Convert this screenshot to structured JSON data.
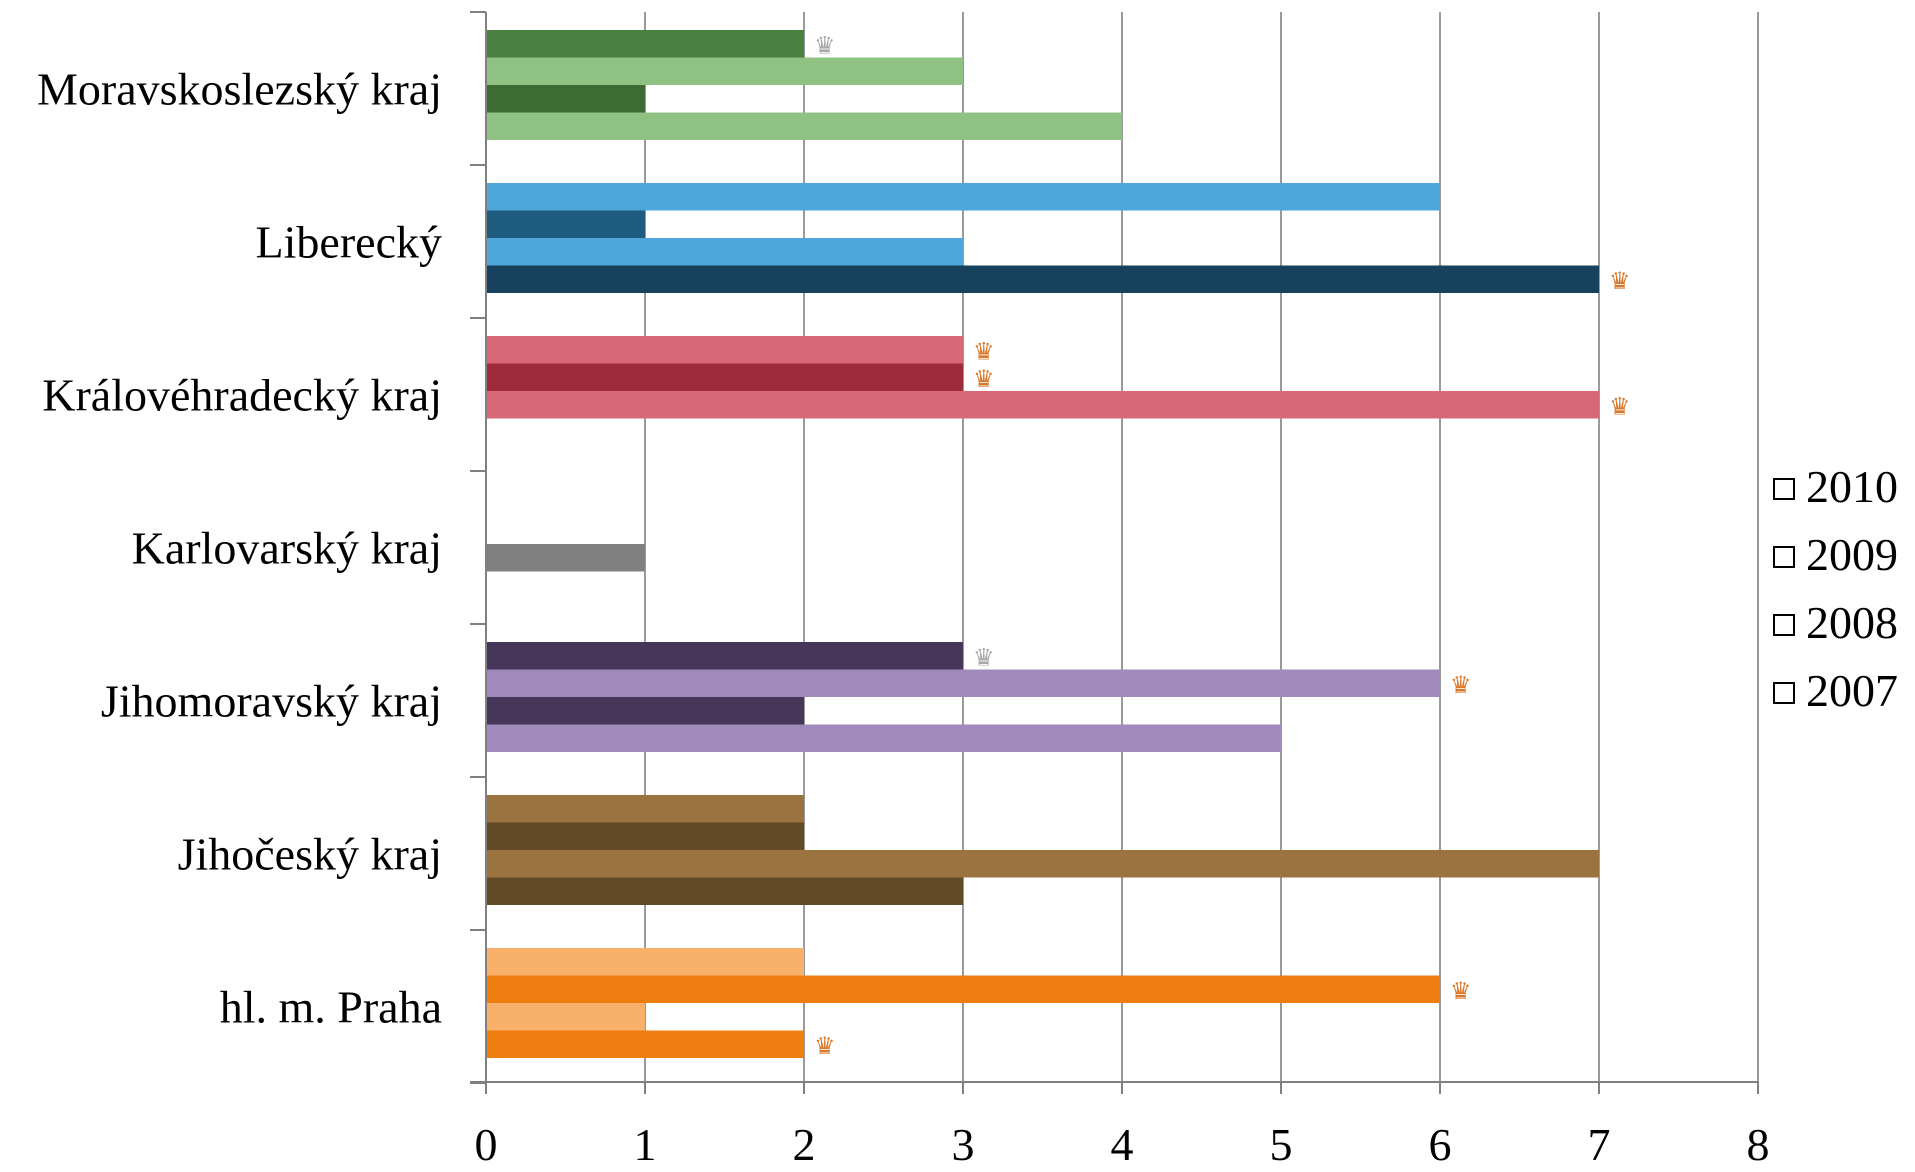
{
  "chart_data": {
    "type": "bar",
    "orientation": "horizontal",
    "categories": [
      "Moravskoslezský kraj",
      "Liberecký",
      "Královéhradecký kraj",
      "Karlovarský kraj",
      "Jihomoravský kraj",
      "Jihočeský kraj",
      "hl. m. Praha"
    ],
    "series": [
      {
        "name": "2010",
        "values": [
          2,
          6,
          3,
          0,
          3,
          2,
          2
        ]
      },
      {
        "name": "2009",
        "values": [
          3,
          1,
          3,
          0,
          6,
          2,
          6
        ]
      },
      {
        "name": "2008",
        "values": [
          1,
          3,
          7,
          1,
          2,
          7,
          1
        ]
      },
      {
        "name": "2007",
        "values": [
          4,
          7,
          0,
          0,
          5,
          3,
          2
        ]
      }
    ],
    "bar_colors": [
      [
        "#4a8040",
        "#8fc183",
        "#3e6a33",
        "#8fc183"
      ],
      [
        "#4ea6da",
        "#1e5b7e",
        "#4ea6da",
        "#17425e"
      ],
      [
        "#d96876",
        "#9e2a3a",
        "#d96876",
        "#d96876"
      ],
      [
        "#808080",
        "#808080",
        "#808080",
        "#808080"
      ],
      [
        "#45365a",
        "#a089bb",
        "#45365a",
        "#a089bb"
      ],
      [
        "#9a7340",
        "#634a26",
        "#9a7340",
        "#634a26"
      ],
      [
        "#f9b06a",
        "#ee7e10",
        "#f9b06a",
        "#ee7e10"
      ]
    ],
    "crowns": [
      {
        "category": 0,
        "series": 0,
        "color": "#a8a8a8"
      },
      {
        "category": 1,
        "series": 3,
        "color": "#d9782a"
      },
      {
        "category": 2,
        "series": 0,
        "color": "#d9782a"
      },
      {
        "category": 2,
        "series": 1,
        "color": "#d9782a"
      },
      {
        "category": 2,
        "series": 2,
        "color": "#d9782a"
      },
      {
        "category": 4,
        "series": 0,
        "color": "#a8a8a8"
      },
      {
        "category": 4,
        "series": 1,
        "color": "#d9782a"
      },
      {
        "category": 6,
        "series": 1,
        "color": "#d9782a"
      },
      {
        "category": 6,
        "series": 3,
        "color": "#d9782a"
      }
    ],
    "crown_glyph": "♛",
    "xlim": [
      0,
      8
    ],
    "x_ticks": [
      "0",
      "1",
      "2",
      "3",
      "4",
      "5",
      "6",
      "7",
      "8"
    ],
    "grid": true,
    "legend": {
      "position": "right",
      "entries": [
        "2010",
        "2009",
        "2008",
        "2007"
      ],
      "marker": "hollow-square"
    },
    "title": "",
    "xlabel": "",
    "ylabel": ""
  }
}
